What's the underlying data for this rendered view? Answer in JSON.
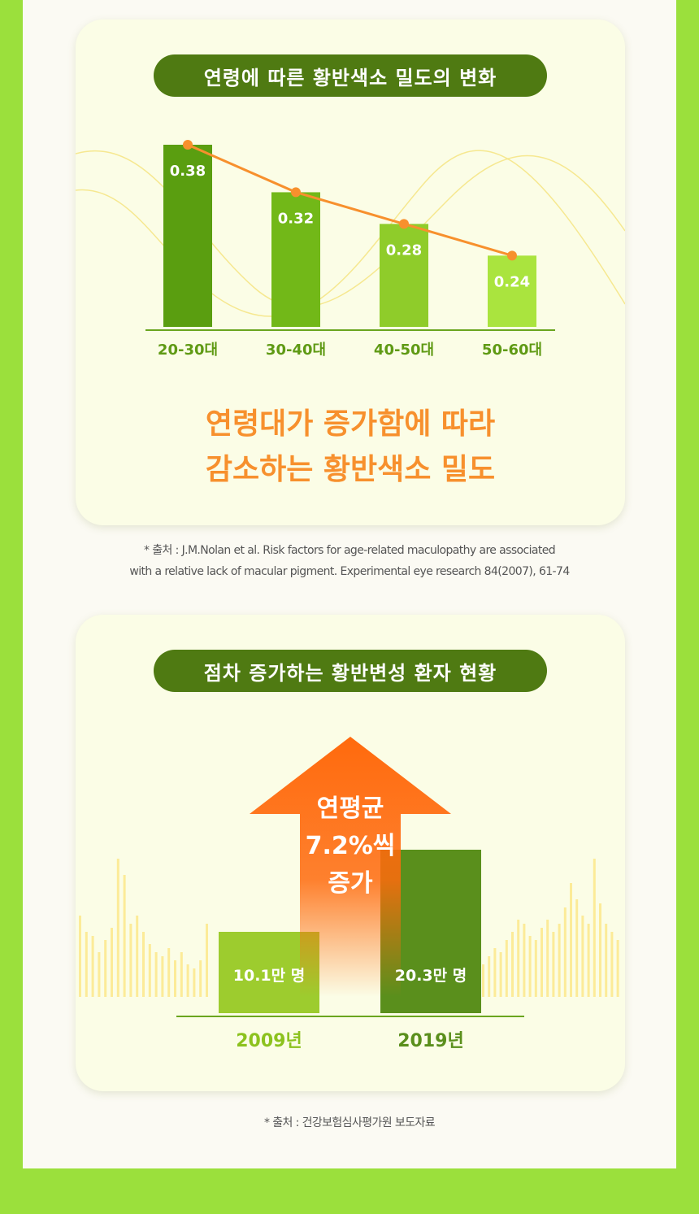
{
  "section1": {
    "title": "연령에 따른 황반색소 밀도의 변화",
    "headline_line1": "연령대가 증가함에 따라",
    "headline_line2": "감소하는 황반색소 밀도",
    "source_line1": "* 출처 : J.M.Nolan et al. Risk factors for age-related maculopathy are associated",
    "source_line2": "with a relative lack of macular pigment. Experimental eye research 84(2007), 61-74"
  },
  "section2": {
    "title": "점차 증가하는 황반변성 환자 현황",
    "arrow_line1": "연평균",
    "arrow_line2": "7.2%씩",
    "arrow_line3": "증가",
    "source": "* 출처 : 건강보험심사평가원 보도자료"
  },
  "colors": {
    "bar1": "#5a9e10",
    "bar2": "#72b818",
    "bar3": "#8fcc2a",
    "bar4": "#aae43e",
    "line": "#f7902d",
    "title_pill": "#4f7a12",
    "bar2009": "#9dcc2e",
    "bar2019": "#5a8f1c",
    "arrow": "#ff6a0d"
  },
  "chart_data": [
    {
      "type": "bar",
      "categories": [
        "20-30대",
        "30-40대",
        "40-50대",
        "50-60대"
      ],
      "values": [
        0.38,
        0.32,
        0.28,
        0.24
      ],
      "value_labels": [
        "0.38",
        "0.32",
        "0.28",
        "0.24"
      ],
      "title": "연령에 따른 황반색소 밀도의 변화",
      "overlay_line": true,
      "ylim": [
        0,
        0.38
      ]
    },
    {
      "type": "bar",
      "categories": [
        "2009년",
        "2019년"
      ],
      "values": [
        10.1,
        20.3
      ],
      "value_labels": [
        "10.1만 명",
        "20.3만 명"
      ],
      "title": "점차 증가하는 황반변성 환자 현황",
      "ylim": [
        0,
        20.3
      ]
    }
  ]
}
